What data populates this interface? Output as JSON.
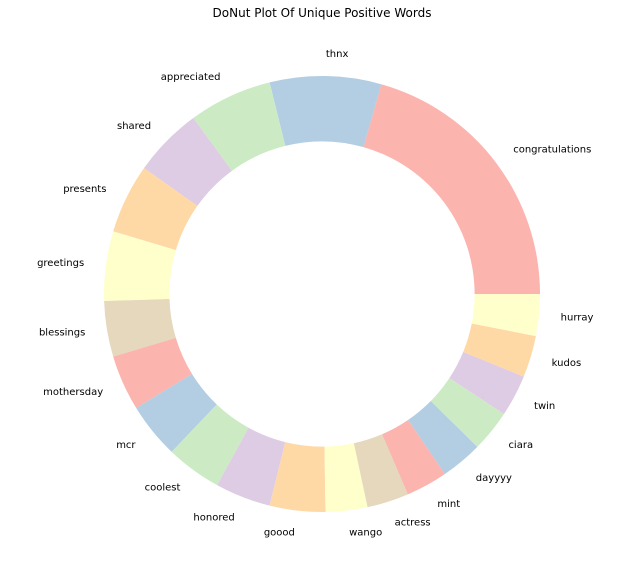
{
  "chart_data": {
    "type": "pie",
    "variant": "donut",
    "title": "DoNut Plot Of Unique Positive Words",
    "categories": [
      "congratulations",
      "thnx",
      "appreciated",
      "shared",
      "presents",
      "greetings",
      "blessings",
      "mothersday",
      "mcr",
      "coolest",
      "honored",
      "goood",
      "wango",
      "actress",
      "mint",
      "dayyyy",
      "ciara",
      "twin",
      "kudos",
      "hurray"
    ],
    "values": [
      20,
      8,
      6,
      5,
      5,
      5,
      4,
      4,
      4,
      4,
      4,
      4,
      3,
      3,
      3,
      3,
      3,
      3,
      3,
      3
    ],
    "colors": [
      "#FBB4AE",
      "#B3CDE3",
      "#CCEBC5",
      "#DECBE4",
      "#FED9A6",
      "#FFFFCC",
      "#E5D8BD"
    ],
    "start_angle_deg": 0,
    "direction": "counterclockwise",
    "hole_ratio": 0.7,
    "legend": "none",
    "grid": false
  }
}
